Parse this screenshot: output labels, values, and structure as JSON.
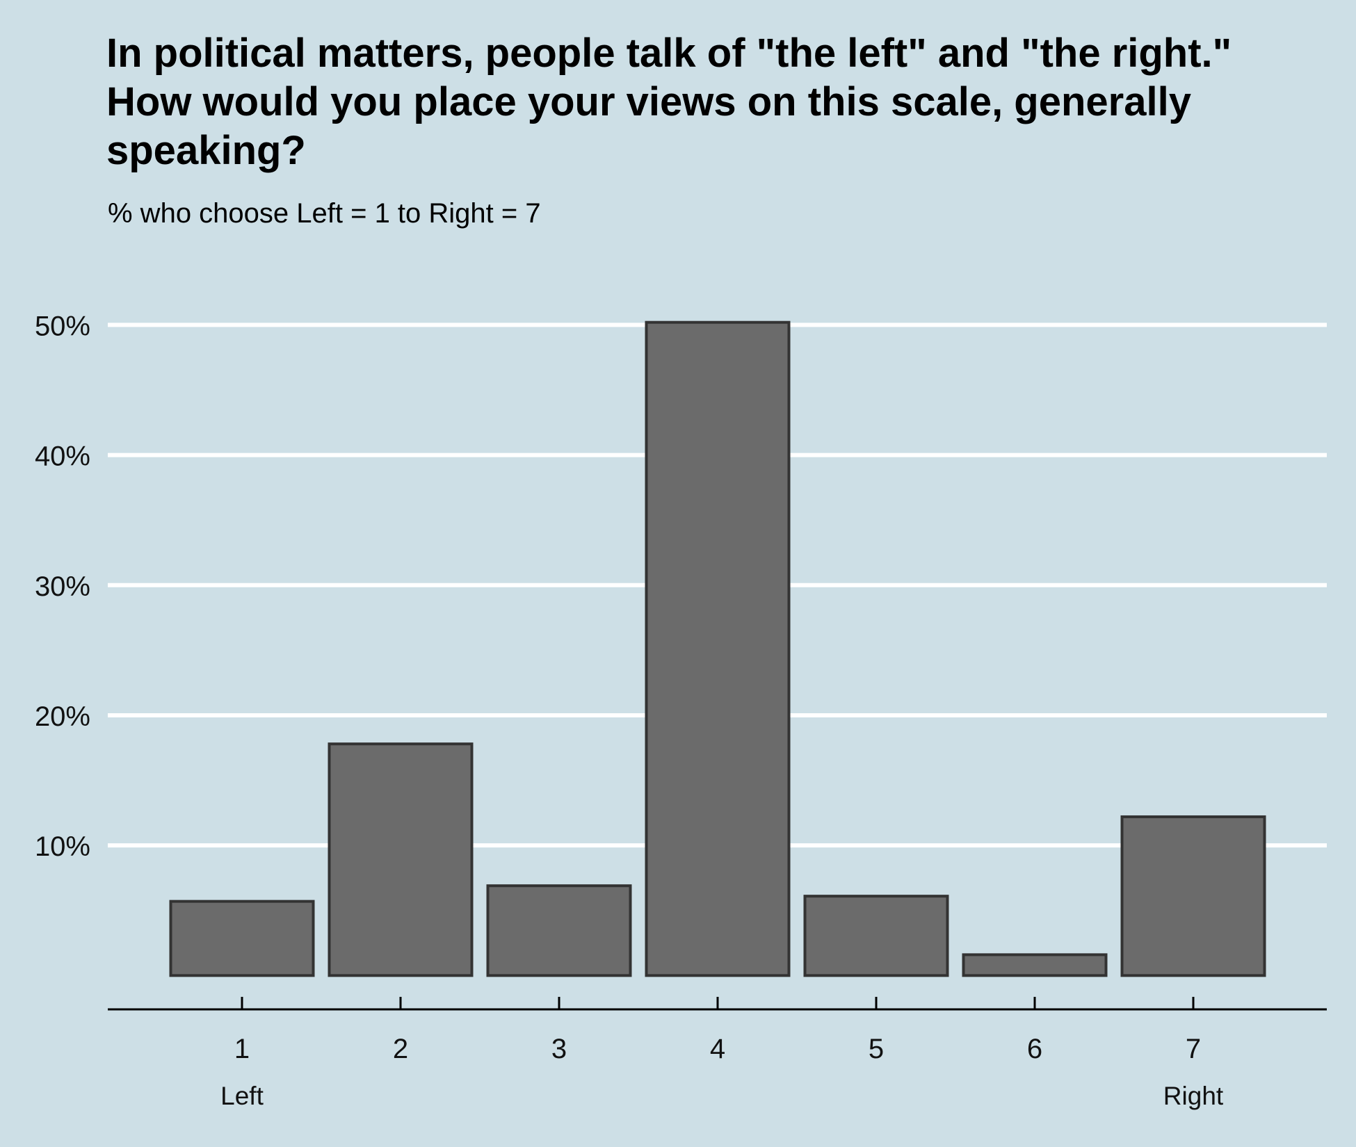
{
  "title_lines": [
    "In political matters, people talk of \"the left\" and \"the right.\"",
    "How would you place your views on this scale, generally",
    "speaking?"
  ],
  "subtitle": "% who choose Left = 1 to Right = 7",
  "colors": {
    "background": "#cddfe6",
    "bar_fill": "#6b6b6b",
    "bar_stroke": "#333333",
    "grid": "#ffffff",
    "axis": "#000000"
  },
  "chart_data": {
    "type": "bar",
    "categories": [
      "1",
      "2",
      "3",
      "4",
      "5",
      "6",
      "7"
    ],
    "values": [
      5.7,
      17.8,
      6.9,
      50.2,
      6.1,
      1.6,
      12.2
    ],
    "ylim": [
      -2.6,
      52
    ],
    "yticks": [
      10,
      20,
      30,
      40,
      50
    ],
    "ytick_labels": [
      "10%",
      "20%",
      "30%",
      "40%",
      "50%"
    ],
    "x_secondary_labels": [
      "Left",
      "",
      "",
      "",
      "",
      "",
      "Right"
    ],
    "grid": "horizontal",
    "legend": "none"
  }
}
